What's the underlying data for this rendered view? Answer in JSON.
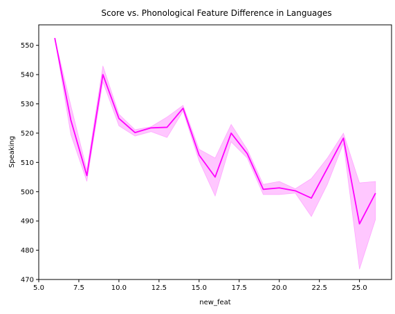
{
  "chart_data": {
    "type": "line",
    "title": "Score vs. Phonological Feature Difference in Languages",
    "xlabel": "new_feat",
    "ylabel": "Speaking",
    "xlim": [
      5.0,
      27.0
    ],
    "ylim": [
      470,
      557
    ],
    "xticks": [
      5.0,
      7.5,
      10.0,
      12.5,
      15.0,
      17.5,
      20.0,
      22.5,
      25.0
    ],
    "xtick_labels": [
      "5.0",
      "7.5",
      "10.0",
      "12.5",
      "15.0",
      "17.5",
      "20.0",
      "22.5",
      "25.0"
    ],
    "yticks": [
      470,
      480,
      490,
      500,
      510,
      520,
      530,
      540,
      550
    ],
    "ytick_labels": [
      "470",
      "480",
      "490",
      "500",
      "510",
      "520",
      "530",
      "540",
      "550"
    ],
    "grid": false,
    "color": "#ff00ff",
    "band_color": "#ff00ff",
    "series": [
      {
        "x": [
          6,
          7,
          8,
          9,
          10,
          11,
          12,
          13,
          14,
          15,
          16,
          17,
          18,
          19,
          20,
          21,
          22,
          23,
          24,
          25,
          26
        ],
        "values": [
          552.5,
          524.5,
          505.5,
          540,
          525,
          520.2,
          521.8,
          522,
          528.5,
          512.5,
          505,
          520,
          513,
          500.8,
          501.3,
          500.3,
          497.8,
          508,
          518.3,
          489,
          499.5
        ],
        "lower": [
          552.5,
          519.5,
          503.5,
          537.5,
          522.5,
          519,
          520.5,
          518.5,
          527.5,
          510.5,
          498.5,
          517,
          511.5,
          499,
          499,
          499.5,
          491.5,
          502.5,
          516.5,
          473.5,
          490.5
        ],
        "upper": [
          552.5,
          529.5,
          507.5,
          543,
          526.5,
          521.2,
          522.2,
          525.5,
          529.5,
          514.5,
          511.5,
          523,
          514.5,
          502.5,
          503.5,
          501,
          504.5,
          511.5,
          520,
          503,
          503.5
        ]
      }
    ]
  }
}
